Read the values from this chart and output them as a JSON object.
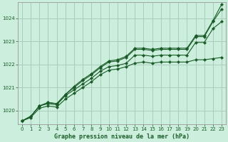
{
  "title": "Graphe pression niveau de la mer (hPa)",
  "bg_color": "#cceedd",
  "grid_color": "#aaccbb",
  "line_color": "#1a5c28",
  "xlim": [
    -0.5,
    23.5
  ],
  "ylim": [
    1019.4,
    1024.7
  ],
  "yticks": [
    1020,
    1021,
    1022,
    1023,
    1024
  ],
  "xticks": [
    0,
    1,
    2,
    3,
    4,
    5,
    6,
    7,
    8,
    9,
    10,
    11,
    12,
    13,
    14,
    15,
    16,
    17,
    18,
    19,
    20,
    21,
    22,
    23
  ],
  "series": [
    [
      1019.55,
      1019.7,
      1020.1,
      1020.2,
      1020.15,
      1020.5,
      1020.75,
      1021.0,
      1021.25,
      1021.55,
      1021.75,
      1021.8,
      1021.9,
      1022.05,
      1022.1,
      1022.05,
      1022.1,
      1022.1,
      1022.1,
      1022.1,
      1022.2,
      1022.2,
      1022.25,
      1022.3
    ],
    [
      1019.55,
      1019.75,
      1020.2,
      1020.3,
      1020.25,
      1020.65,
      1020.9,
      1021.15,
      1021.4,
      1021.7,
      1021.9,
      1021.95,
      1022.05,
      1022.4,
      1022.4,
      1022.35,
      1022.4,
      1022.4,
      1022.4,
      1022.4,
      1022.95,
      1022.95,
      1023.55,
      1023.85
    ],
    [
      1019.55,
      1019.75,
      1020.2,
      1020.35,
      1020.3,
      1020.7,
      1021.0,
      1021.3,
      1021.55,
      1021.85,
      1022.1,
      1022.15,
      1022.3,
      1022.65,
      1022.65,
      1022.6,
      1022.65,
      1022.65,
      1022.65,
      1022.65,
      1023.2,
      1023.2,
      1023.85,
      1024.4
    ],
    [
      1019.55,
      1019.75,
      1020.2,
      1020.35,
      1020.3,
      1020.7,
      1021.05,
      1021.35,
      1021.6,
      1021.9,
      1022.15,
      1022.2,
      1022.35,
      1022.7,
      1022.7,
      1022.65,
      1022.7,
      1022.7,
      1022.7,
      1022.7,
      1023.25,
      1023.25,
      1023.9,
      1024.6
    ]
  ]
}
